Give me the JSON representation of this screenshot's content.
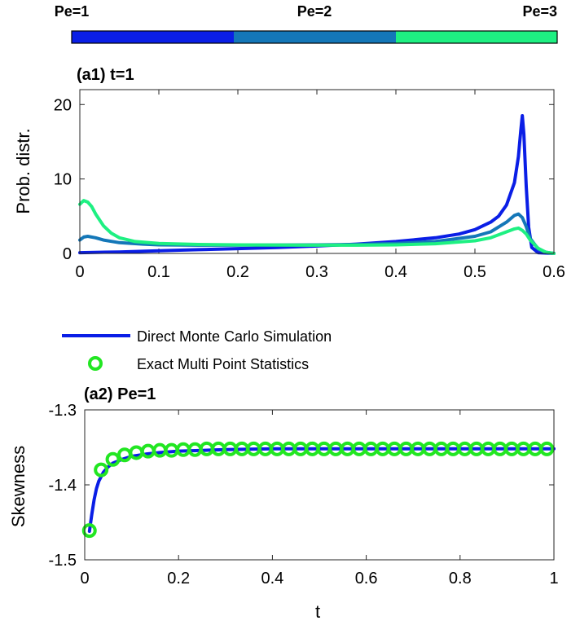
{
  "colorbar": {
    "labels": [
      "Pe=1",
      "Pe=2",
      "Pe=3"
    ],
    "colors": [
      "#0a1ee6",
      "#1477b8",
      "#1ef082"
    ]
  },
  "chart_data": [
    {
      "id": "a1",
      "type": "line",
      "title": "(a1) t=1",
      "xlabel": "",
      "ylabel": "Prob. distr.",
      "xlim": [
        0,
        0.6
      ],
      "ylim": [
        0,
        22
      ],
      "xticks": [
        0,
        0.1,
        0.2,
        0.3,
        0.4,
        0.5,
        0.6
      ],
      "xtick_labels": [
        "0",
        "0.1",
        "0.2",
        "0.3",
        "0.4",
        "0.5",
        "0.6"
      ],
      "yticks": [
        0,
        10,
        20
      ],
      "ytick_labels": [
        "0",
        "10",
        "20"
      ],
      "series": [
        {
          "color": "#0a1ee6",
          "x": [
            0,
            0.05,
            0.1,
            0.15,
            0.2,
            0.25,
            0.3,
            0.35,
            0.4,
            0.45,
            0.48,
            0.5,
            0.52,
            0.53,
            0.54,
            0.55,
            0.555,
            0.558,
            0.56,
            0.562,
            0.565,
            0.568,
            0.572,
            0.58,
            0.6
          ],
          "y": [
            0.1,
            0.2,
            0.35,
            0.5,
            0.65,
            0.8,
            1.0,
            1.25,
            1.6,
            2.1,
            2.6,
            3.2,
            4.2,
            5.0,
            6.5,
            9.5,
            13.0,
            16.5,
            18.5,
            16.0,
            9.0,
            3.5,
            0.8,
            0.1,
            0
          ]
        },
        {
          "color": "#1477b8",
          "x": [
            0,
            0.005,
            0.01,
            0.02,
            0.03,
            0.05,
            0.08,
            0.1,
            0.15,
            0.2,
            0.3,
            0.35,
            0.4,
            0.45,
            0.5,
            0.52,
            0.54,
            0.55,
            0.555,
            0.56,
            0.565,
            0.57,
            0.58,
            0.59,
            0.6
          ],
          "y": [
            1.8,
            2.2,
            2.3,
            2.1,
            1.8,
            1.45,
            1.25,
            1.15,
            1.1,
            1.1,
            1.15,
            1.2,
            1.35,
            1.6,
            2.3,
            2.9,
            4.2,
            5.1,
            5.3,
            4.8,
            3.6,
            2.0,
            0.6,
            0.15,
            0
          ]
        },
        {
          "color": "#1ef082",
          "x": [
            0,
            0.005,
            0.01,
            0.015,
            0.02,
            0.03,
            0.04,
            0.05,
            0.07,
            0.1,
            0.15,
            0.2,
            0.3,
            0.35,
            0.4,
            0.45,
            0.5,
            0.52,
            0.54,
            0.55,
            0.555,
            0.56,
            0.565,
            0.57,
            0.58,
            0.59,
            0.6
          ],
          "y": [
            6.6,
            7.1,
            6.9,
            6.3,
            5.3,
            3.7,
            2.7,
            2.1,
            1.6,
            1.35,
            1.2,
            1.15,
            1.1,
            1.1,
            1.15,
            1.3,
            1.7,
            2.1,
            2.9,
            3.3,
            3.4,
            3.1,
            2.6,
            1.8,
            0.7,
            0.15,
            0
          ]
        }
      ]
    },
    {
      "id": "a2",
      "type": "line",
      "title": "(a2) Pe=1",
      "xlabel": "t",
      "ylabel": "Skewness",
      "xlim": [
        0,
        1
      ],
      "ylim": [
        -1.5,
        -1.3
      ],
      "xticks": [
        0,
        0.2,
        0.4,
        0.6,
        0.8,
        1
      ],
      "xtick_labels": [
        "0",
        "0.2",
        "0.4",
        "0.6",
        "0.8",
        "1"
      ],
      "yticks": [
        -1.5,
        -1.4,
        -1.3
      ],
      "ytick_labels": [
        "-1.5",
        "-1.4",
        "-1.3"
      ],
      "legend": [
        "Direct Monte Carlo Simulation",
        "Exact Multi Point Statistics"
      ],
      "legend_placement": "top-left, above plot",
      "series": [
        {
          "name": "Direct Monte Carlo Simulation",
          "style": "line",
          "color": "#0a1ee6",
          "x": [
            0.01,
            0.015,
            0.02,
            0.025,
            0.03,
            0.04,
            0.05,
            0.06,
            0.08,
            0.1,
            0.13,
            0.16,
            0.2,
            0.25,
            0.3,
            0.4,
            0.5,
            0.6,
            0.7,
            0.8,
            0.9,
            1.0
          ],
          "y": [
            -1.462,
            -1.44,
            -1.42,
            -1.405,
            -1.395,
            -1.383,
            -1.376,
            -1.371,
            -1.366,
            -1.362,
            -1.359,
            -1.357,
            -1.355,
            -1.354,
            -1.353,
            -1.352,
            -1.352,
            -1.352,
            -1.352,
            -1.352,
            -1.352,
            -1.352
          ]
        },
        {
          "name": "Exact Multi Point Statistics",
          "style": "markers",
          "marker": "circle",
          "color": "#22e622",
          "x": [
            0.01,
            0.035,
            0.06,
            0.085,
            0.11,
            0.135,
            0.16,
            0.185,
            0.21,
            0.235,
            0.26,
            0.285,
            0.31,
            0.335,
            0.36,
            0.385,
            0.41,
            0.435,
            0.46,
            0.485,
            0.51,
            0.535,
            0.56,
            0.585,
            0.61,
            0.635,
            0.66,
            0.685,
            0.71,
            0.735,
            0.76,
            0.785,
            0.81,
            0.835,
            0.86,
            0.885,
            0.91,
            0.935,
            0.96,
            0.985
          ],
          "y": [
            -1.461,
            -1.38,
            -1.366,
            -1.36,
            -1.357,
            -1.355,
            -1.354,
            -1.354,
            -1.353,
            -1.353,
            -1.352,
            -1.352,
            -1.352,
            -1.352,
            -1.352,
            -1.352,
            -1.352,
            -1.352,
            -1.352,
            -1.352,
            -1.352,
            -1.352,
            -1.352,
            -1.352,
            -1.352,
            -1.352,
            -1.352,
            -1.352,
            -1.352,
            -1.352,
            -1.352,
            -1.352,
            -1.352,
            -1.352,
            -1.352,
            -1.352,
            -1.352,
            -1.352,
            -1.352,
            -1.352
          ]
        }
      ]
    }
  ]
}
